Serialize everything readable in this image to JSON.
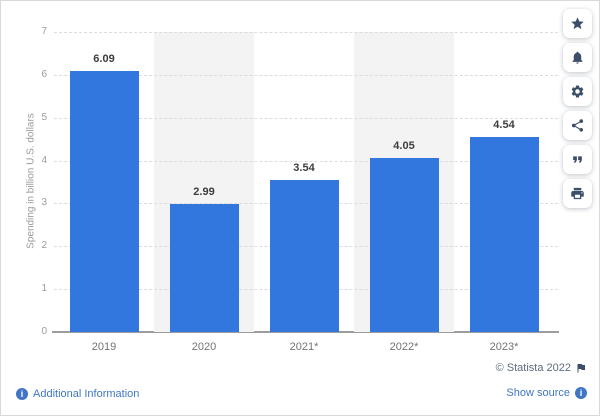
{
  "chart_data": {
    "type": "bar",
    "title": "",
    "categories": [
      "2019",
      "2020",
      "2021*",
      "2022*",
      "2023*"
    ],
    "values": [
      6.09,
      2.99,
      3.54,
      4.05,
      4.54
    ],
    "data_labels": [
      "6.09",
      "2.99",
      "3.54",
      "4.05",
      "4.54"
    ],
    "xlabel": "",
    "ylabel": "Spending in billion U.S. dollars",
    "ylim": [
      0,
      7
    ],
    "yticks": [
      "0",
      "1",
      "2",
      "3",
      "4",
      "5",
      "6",
      "7"
    ],
    "grid": true,
    "legend": false,
    "bar_color": "#3277de",
    "plot_band_color": "#f3f3f3",
    "banded_columns": [
      1,
      3
    ]
  },
  "toolbar": {
    "icon_color": "#3c4f68",
    "buttons": [
      {
        "name": "favorite-button",
        "icon": "star-icon"
      },
      {
        "name": "notifications-button",
        "icon": "bell-icon"
      },
      {
        "name": "settings-button",
        "icon": "gear-icon"
      },
      {
        "name": "share-button",
        "icon": "share-icon"
      },
      {
        "name": "cite-button",
        "icon": "quote-icon"
      },
      {
        "name": "print-button",
        "icon": "print-icon"
      }
    ]
  },
  "footer": {
    "additional_information_label": "Additional Information",
    "copyright_text": "© Statista 2022",
    "show_source_label": "Show source",
    "info_icon_glyph": "i",
    "link_color": "#4076c4"
  }
}
